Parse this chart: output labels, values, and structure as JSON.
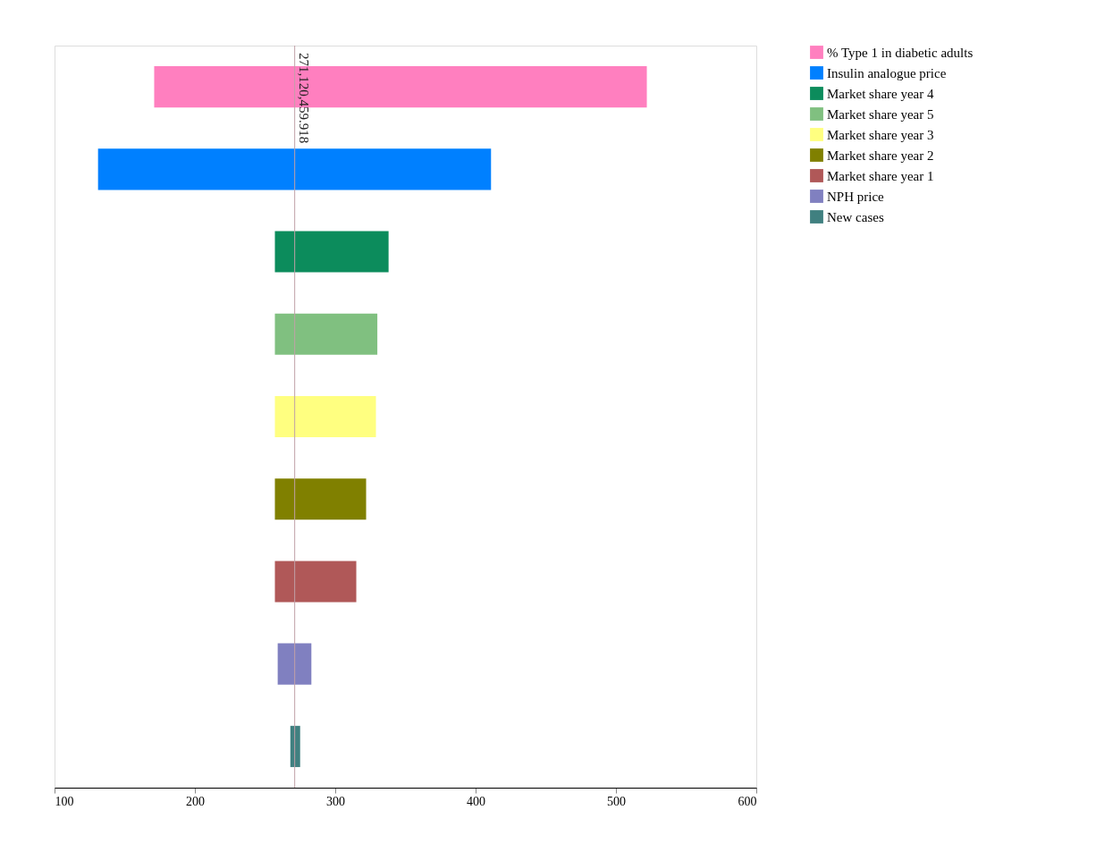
{
  "chart_data": {
    "type": "bar",
    "orientation": "horizontal",
    "categories": [
      null,
      null,
      null,
      null,
      null,
      null,
      null,
      null,
      null
    ],
    "series": [
      {
        "name": "% Type 1 in diabetic adults",
        "color": "#ff7fbf",
        "values": [
          351,
          null,
          null,
          null,
          null,
          null,
          null,
          null,
          null
        ],
        "base": [
          171,
          null,
          null,
          null,
          null,
          null,
          null,
          null,
          null
        ]
      },
      {
        "name": "Insulin analogue price",
        "color": "#0080ff",
        "values": [
          null,
          280,
          null,
          null,
          null,
          null,
          null,
          null,
          null
        ],
        "base": [
          null,
          131,
          null,
          null,
          null,
          null,
          null,
          null,
          null
        ]
      },
      {
        "name": "Market share year 4",
        "color": "#0c8c5c",
        "values": [
          null,
          null,
          81,
          null,
          null,
          null,
          null,
          null,
          null
        ],
        "base": [
          null,
          null,
          257,
          null,
          null,
          null,
          null,
          null,
          null
        ]
      },
      {
        "name": "Market share year 5",
        "color": "#80c080",
        "values": [
          null,
          null,
          null,
          73,
          null,
          null,
          null,
          null,
          null
        ],
        "base": [
          null,
          null,
          null,
          257,
          null,
          null,
          null,
          null,
          null
        ]
      },
      {
        "name": "Market share year  3",
        "color": "#ffff80",
        "values": [
          null,
          null,
          null,
          null,
          72,
          null,
          null,
          null,
          null
        ],
        "base": [
          null,
          null,
          null,
          null,
          257,
          null,
          null,
          null,
          null
        ]
      },
      {
        "name": "Market share year  2",
        "color": "#808000",
        "values": [
          null,
          null,
          null,
          null,
          null,
          65,
          null,
          null,
          null
        ],
        "base": [
          null,
          null,
          null,
          null,
          null,
          257,
          null,
          null,
          null
        ]
      },
      {
        "name": "Market share year  1",
        "color": "#b05858",
        "values": [
          null,
          null,
          null,
          null,
          null,
          null,
          58,
          null,
          null
        ],
        "base": [
          null,
          null,
          null,
          null,
          null,
          null,
          257,
          null,
          null
        ]
      },
      {
        "name": "NPH price",
        "color": "#8080c0",
        "values": [
          null,
          null,
          null,
          null,
          null,
          null,
          null,
          24,
          null
        ],
        "base": [
          null,
          null,
          null,
          null,
          null,
          null,
          null,
          259,
          null
        ]
      },
      {
        "name": "New cases",
        "color": "#408080",
        "values": [
          null,
          null,
          null,
          null,
          null,
          null,
          null,
          null,
          7
        ],
        "base": [
          null,
          null,
          null,
          null,
          null,
          null,
          null,
          null,
          268
        ]
      }
    ],
    "xlim": [
      100,
      600
    ],
    "xticks": [
      100,
      200,
      300,
      400,
      500,
      600
    ],
    "ref_lines": [
      {
        "axis": "x",
        "value": 271.120459918,
        "label": "271,120,459.918",
        "color": "#c0a0a8"
      }
    ],
    "grid": false,
    "legend": "top right",
    "tick_labels": "x"
  }
}
